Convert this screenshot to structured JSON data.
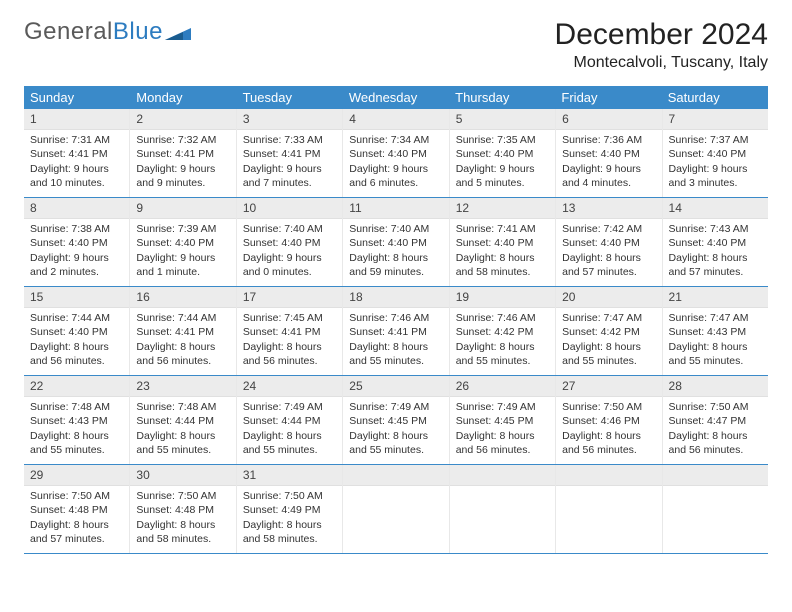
{
  "brand": {
    "text1": "General",
    "text2": "Blue"
  },
  "colors": {
    "header_bg": "#3a8ac9",
    "header_text": "#ffffff",
    "daynum_bg": "#ececec",
    "border": "#3a8ac9",
    "body_bg": "#ffffff"
  },
  "title": "December 2024",
  "location": "Montecalvoli, Tuscany, Italy",
  "weekdays": [
    "Sunday",
    "Monday",
    "Tuesday",
    "Wednesday",
    "Thursday",
    "Friday",
    "Saturday"
  ],
  "weeks": [
    [
      {
        "n": "1",
        "sr": "Sunrise: 7:31 AM",
        "ss": "Sunset: 4:41 PM",
        "d1": "Daylight: 9 hours",
        "d2": "and 10 minutes."
      },
      {
        "n": "2",
        "sr": "Sunrise: 7:32 AM",
        "ss": "Sunset: 4:41 PM",
        "d1": "Daylight: 9 hours",
        "d2": "and 9 minutes."
      },
      {
        "n": "3",
        "sr": "Sunrise: 7:33 AM",
        "ss": "Sunset: 4:41 PM",
        "d1": "Daylight: 9 hours",
        "d2": "and 7 minutes."
      },
      {
        "n": "4",
        "sr": "Sunrise: 7:34 AM",
        "ss": "Sunset: 4:40 PM",
        "d1": "Daylight: 9 hours",
        "d2": "and 6 minutes."
      },
      {
        "n": "5",
        "sr": "Sunrise: 7:35 AM",
        "ss": "Sunset: 4:40 PM",
        "d1": "Daylight: 9 hours",
        "d2": "and 5 minutes."
      },
      {
        "n": "6",
        "sr": "Sunrise: 7:36 AM",
        "ss": "Sunset: 4:40 PM",
        "d1": "Daylight: 9 hours",
        "d2": "and 4 minutes."
      },
      {
        "n": "7",
        "sr": "Sunrise: 7:37 AM",
        "ss": "Sunset: 4:40 PM",
        "d1": "Daylight: 9 hours",
        "d2": "and 3 minutes."
      }
    ],
    [
      {
        "n": "8",
        "sr": "Sunrise: 7:38 AM",
        "ss": "Sunset: 4:40 PM",
        "d1": "Daylight: 9 hours",
        "d2": "and 2 minutes."
      },
      {
        "n": "9",
        "sr": "Sunrise: 7:39 AM",
        "ss": "Sunset: 4:40 PM",
        "d1": "Daylight: 9 hours",
        "d2": "and 1 minute."
      },
      {
        "n": "10",
        "sr": "Sunrise: 7:40 AM",
        "ss": "Sunset: 4:40 PM",
        "d1": "Daylight: 9 hours",
        "d2": "and 0 minutes."
      },
      {
        "n": "11",
        "sr": "Sunrise: 7:40 AM",
        "ss": "Sunset: 4:40 PM",
        "d1": "Daylight: 8 hours",
        "d2": "and 59 minutes."
      },
      {
        "n": "12",
        "sr": "Sunrise: 7:41 AM",
        "ss": "Sunset: 4:40 PM",
        "d1": "Daylight: 8 hours",
        "d2": "and 58 minutes."
      },
      {
        "n": "13",
        "sr": "Sunrise: 7:42 AM",
        "ss": "Sunset: 4:40 PM",
        "d1": "Daylight: 8 hours",
        "d2": "and 57 minutes."
      },
      {
        "n": "14",
        "sr": "Sunrise: 7:43 AM",
        "ss": "Sunset: 4:40 PM",
        "d1": "Daylight: 8 hours",
        "d2": "and 57 minutes."
      }
    ],
    [
      {
        "n": "15",
        "sr": "Sunrise: 7:44 AM",
        "ss": "Sunset: 4:40 PM",
        "d1": "Daylight: 8 hours",
        "d2": "and 56 minutes."
      },
      {
        "n": "16",
        "sr": "Sunrise: 7:44 AM",
        "ss": "Sunset: 4:41 PM",
        "d1": "Daylight: 8 hours",
        "d2": "and 56 minutes."
      },
      {
        "n": "17",
        "sr": "Sunrise: 7:45 AM",
        "ss": "Sunset: 4:41 PM",
        "d1": "Daylight: 8 hours",
        "d2": "and 56 minutes."
      },
      {
        "n": "18",
        "sr": "Sunrise: 7:46 AM",
        "ss": "Sunset: 4:41 PM",
        "d1": "Daylight: 8 hours",
        "d2": "and 55 minutes."
      },
      {
        "n": "19",
        "sr": "Sunrise: 7:46 AM",
        "ss": "Sunset: 4:42 PM",
        "d1": "Daylight: 8 hours",
        "d2": "and 55 minutes."
      },
      {
        "n": "20",
        "sr": "Sunrise: 7:47 AM",
        "ss": "Sunset: 4:42 PM",
        "d1": "Daylight: 8 hours",
        "d2": "and 55 minutes."
      },
      {
        "n": "21",
        "sr": "Sunrise: 7:47 AM",
        "ss": "Sunset: 4:43 PM",
        "d1": "Daylight: 8 hours",
        "d2": "and 55 minutes."
      }
    ],
    [
      {
        "n": "22",
        "sr": "Sunrise: 7:48 AM",
        "ss": "Sunset: 4:43 PM",
        "d1": "Daylight: 8 hours",
        "d2": "and 55 minutes."
      },
      {
        "n": "23",
        "sr": "Sunrise: 7:48 AM",
        "ss": "Sunset: 4:44 PM",
        "d1": "Daylight: 8 hours",
        "d2": "and 55 minutes."
      },
      {
        "n": "24",
        "sr": "Sunrise: 7:49 AM",
        "ss": "Sunset: 4:44 PM",
        "d1": "Daylight: 8 hours",
        "d2": "and 55 minutes."
      },
      {
        "n": "25",
        "sr": "Sunrise: 7:49 AM",
        "ss": "Sunset: 4:45 PM",
        "d1": "Daylight: 8 hours",
        "d2": "and 55 minutes."
      },
      {
        "n": "26",
        "sr": "Sunrise: 7:49 AM",
        "ss": "Sunset: 4:45 PM",
        "d1": "Daylight: 8 hours",
        "d2": "and 56 minutes."
      },
      {
        "n": "27",
        "sr": "Sunrise: 7:50 AM",
        "ss": "Sunset: 4:46 PM",
        "d1": "Daylight: 8 hours",
        "d2": "and 56 minutes."
      },
      {
        "n": "28",
        "sr": "Sunrise: 7:50 AM",
        "ss": "Sunset: 4:47 PM",
        "d1": "Daylight: 8 hours",
        "d2": "and 56 minutes."
      }
    ],
    [
      {
        "n": "29",
        "sr": "Sunrise: 7:50 AM",
        "ss": "Sunset: 4:48 PM",
        "d1": "Daylight: 8 hours",
        "d2": "and 57 minutes."
      },
      {
        "n": "30",
        "sr": "Sunrise: 7:50 AM",
        "ss": "Sunset: 4:48 PM",
        "d1": "Daylight: 8 hours",
        "d2": "and 58 minutes."
      },
      {
        "n": "31",
        "sr": "Sunrise: 7:50 AM",
        "ss": "Sunset: 4:49 PM",
        "d1": "Daylight: 8 hours",
        "d2": "and 58 minutes."
      },
      {
        "empty": true
      },
      {
        "empty": true
      },
      {
        "empty": true
      },
      {
        "empty": true
      }
    ]
  ]
}
